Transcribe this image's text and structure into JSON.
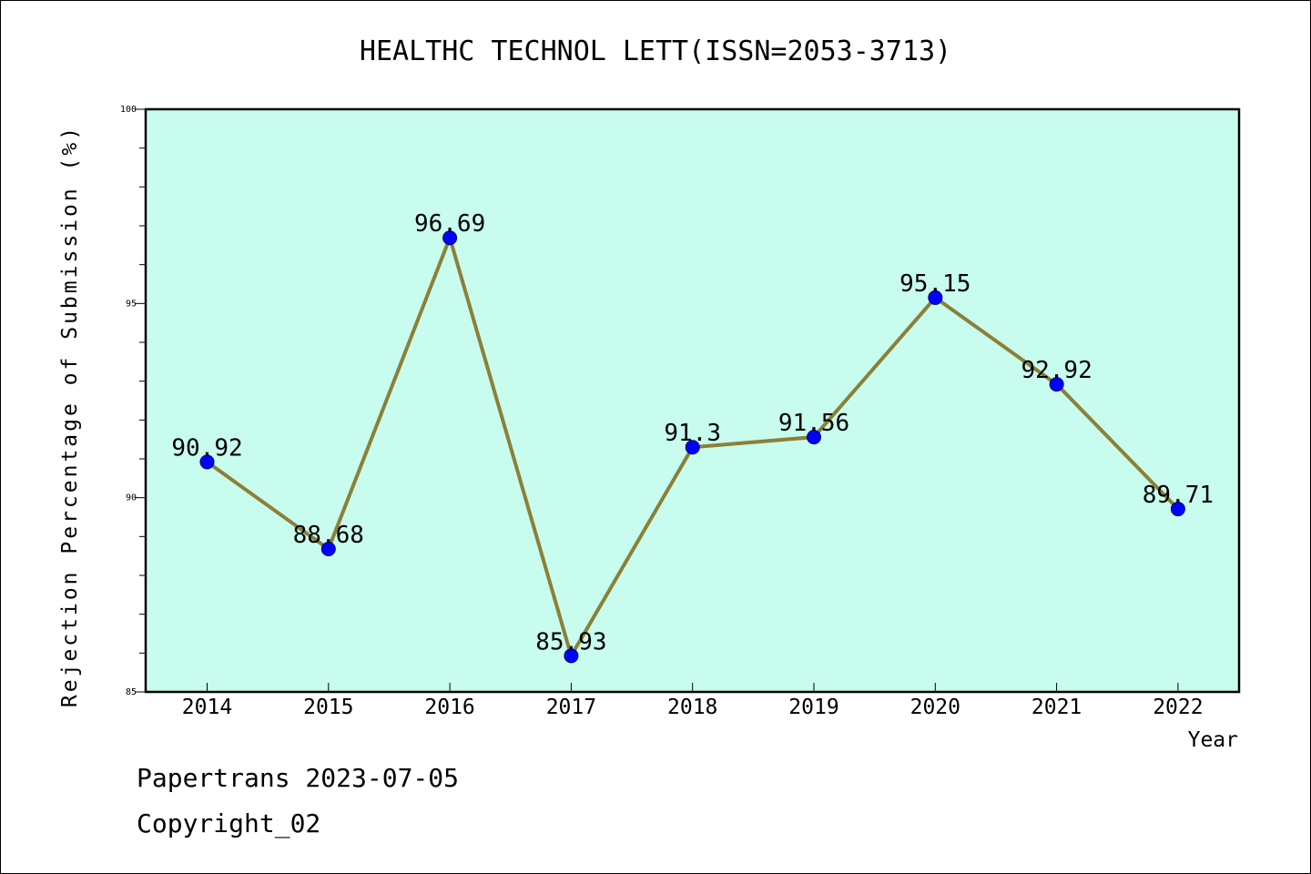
{
  "chart_data": {
    "type": "line",
    "title": "HEALTHC TECHNOL LETT(ISSN=2053-3713)",
    "xlabel": "Year",
    "ylabel": "Rejection Percentage of Submission (%)",
    "categories": [
      "2014",
      "2015",
      "2016",
      "2017",
      "2018",
      "2019",
      "2020",
      "2021",
      "2022"
    ],
    "values": [
      90.92,
      88.68,
      96.69,
      85.93,
      91.3,
      91.56,
      95.15,
      92.92,
      89.71
    ],
    "data_labels": [
      "90.92",
      "88.68",
      "96.69",
      "85.93",
      "91.3",
      "91.56",
      "95.15",
      "92.92",
      "89.71"
    ],
    "ylim": [
      85,
      100
    ],
    "yticks": [
      85,
      90,
      95,
      100
    ],
    "grid": false,
    "colors": {
      "plot_background": "#c8fcee",
      "line": "#8b8038",
      "marker": "#0000ff"
    }
  },
  "footer": {
    "line1": "Papertrans 2023-07-05",
    "line2": "Copyright_02"
  }
}
